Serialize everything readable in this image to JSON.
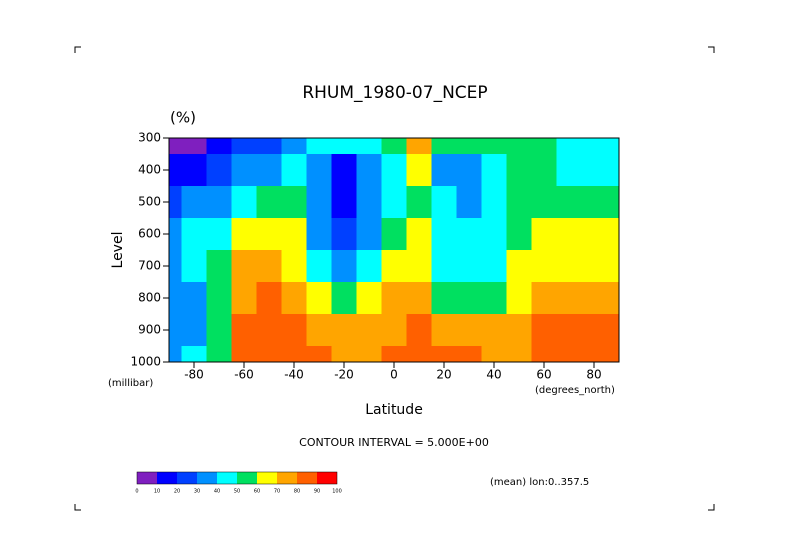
{
  "chart_data": {
    "type": "contour",
    "title": "RHUM_1980-07_NCEP",
    "units": "(%)",
    "x_label": "Latitude",
    "x_units": "(degrees_north)",
    "y_label": "Level",
    "y_units": "(millibar)",
    "note": "CONTOUR INTERVAL = 5.000E+00",
    "subset": "(mean) lon:0..357.5",
    "x": [
      -90,
      -80,
      -70,
      -60,
      -50,
      -40,
      -30,
      -20,
      -10,
      0,
      10,
      20,
      30,
      40,
      50,
      60,
      70,
      80,
      90
    ],
    "y": [
      300,
      400,
      500,
      600,
      700,
      800,
      900,
      1000
    ],
    "z": [
      [
        5,
        5,
        15,
        20,
        20,
        30,
        40,
        40,
        45,
        55,
        70,
        55,
        50,
        55,
        55,
        55,
        40,
        45,
        45
      ],
      [
        15,
        15,
        25,
        30,
        35,
        40,
        35,
        15,
        30,
        45,
        60,
        35,
        30,
        40,
        50,
        50,
        45,
        40,
        40
      ],
      [
        25,
        30,
        35,
        45,
        50,
        55,
        30,
        15,
        30,
        45,
        55,
        40,
        35,
        40,
        50,
        55,
        55,
        50,
        50
      ],
      [
        35,
        40,
        45,
        60,
        65,
        60,
        30,
        20,
        35,
        50,
        60,
        45,
        40,
        45,
        55,
        60,
        60,
        60,
        60
      ],
      [
        35,
        40,
        55,
        70,
        75,
        65,
        40,
        30,
        45,
        60,
        65,
        45,
        45,
        45,
        60,
        65,
        65,
        65,
        60
      ],
      [
        30,
        35,
        55,
        75,
        80,
        75,
        60,
        55,
        60,
        70,
        75,
        55,
        50,
        55,
        65,
        70,
        70,
        70,
        70
      ],
      [
        30,
        35,
        50,
        85,
        85,
        80,
        75,
        70,
        70,
        75,
        80,
        75,
        70,
        70,
        70,
        80,
        80,
        80,
        80
      ],
      [
        35,
        40,
        55,
        85,
        85,
        80,
        80,
        75,
        75,
        80,
        80,
        80,
        80,
        75,
        75,
        80,
        85,
        85,
        85
      ]
    ],
    "xlim": [
      -90,
      90
    ],
    "ylim": [
      1000,
      300
    ],
    "xticks": [
      -80,
      -60,
      -40,
      -20,
      0,
      20,
      40,
      60,
      80
    ],
    "yticks": [
      300,
      400,
      500,
      600,
      700,
      800,
      900,
      1000
    ],
    "levels": [
      0,
      10,
      20,
      30,
      40,
      50,
      60,
      70,
      80,
      90,
      100
    ],
    "colors": [
      "#7f1fbf",
      "#0000ff",
      "#0040ff",
      "#0090ff",
      "#00ffff",
      "#00e060",
      "#ffff00",
      "#ffa500",
      "#ff6000",
      "#ff0000"
    ]
  }
}
